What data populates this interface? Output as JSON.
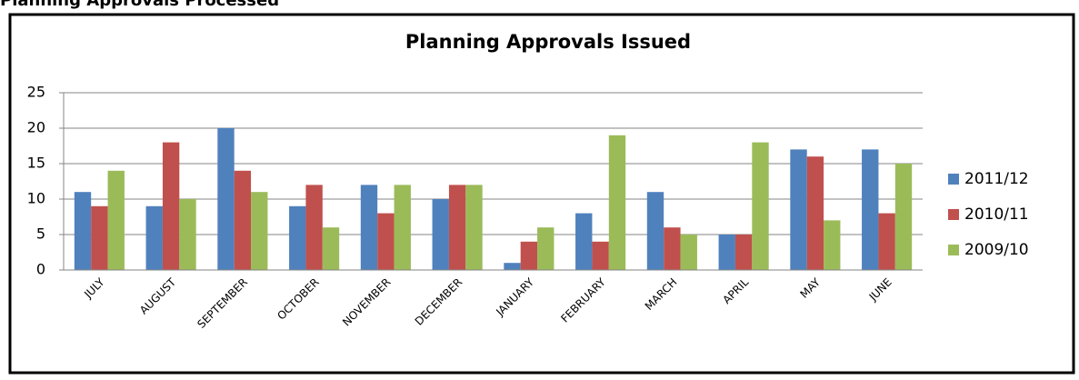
{
  "heading": "Planning Approvals Processed",
  "chart_data": {
    "type": "bar",
    "title": "Planning Approvals Issued",
    "categories": [
      "JULY",
      "AUGUST",
      "SEPTEMBER",
      "OCTOBER",
      "NOVEMBER",
      "DECEMBER",
      "JANUARY",
      "FEBRUARY",
      "MARCH",
      "APRIL",
      "MAY",
      "JUNE"
    ],
    "series": [
      {
        "name": "2011/12",
        "color": "#4f81bd",
        "values": [
          11,
          9,
          20,
          9,
          12,
          10,
          1,
          8,
          11,
          5,
          17,
          17
        ]
      },
      {
        "name": "2010/11",
        "color": "#c0504d",
        "values": [
          9,
          18,
          14,
          12,
          8,
          12,
          4,
          4,
          6,
          5,
          16,
          8
        ]
      },
      {
        "name": "2009/10",
        "color": "#9bbb59",
        "values": [
          14,
          10,
          11,
          6,
          12,
          12,
          6,
          19,
          5,
          18,
          7,
          15
        ]
      }
    ],
    "ylim": [
      0,
      25
    ],
    "yticks": [
      0,
      5,
      10,
      15,
      20,
      25
    ],
    "grid": true,
    "legend": "right"
  }
}
